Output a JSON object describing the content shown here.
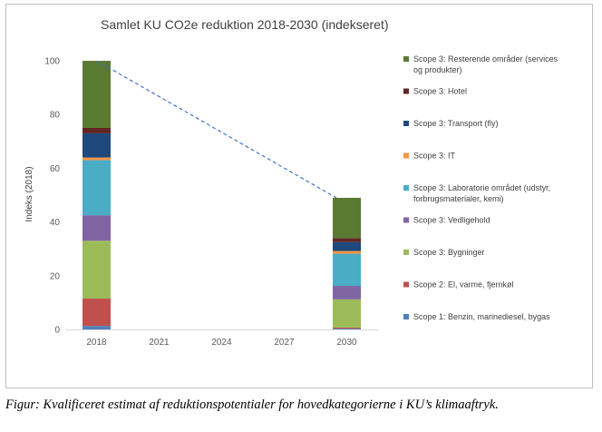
{
  "chart_data": {
    "type": "bar",
    "stacked": true,
    "title": "Samlet KU CO2e reduktion 2018-2030 (indekseret)",
    "ylabel": "Indeks (2018)",
    "xlabel": "",
    "ylim": [
      0,
      100
    ],
    "yticks": [
      "0",
      "20",
      "40",
      "60",
      "80",
      "100"
    ],
    "categories": [
      "2018",
      "2021",
      "2024",
      "2027",
      "2030"
    ],
    "series": [
      {
        "name": "Scope 1: Benzin, marinediesel, bygas",
        "color": "#4f81bd",
        "values": [
          1.3,
          null,
          null,
          null,
          0.3
        ]
      },
      {
        "name": "Scope 2: El, varme, fjernkøl",
        "color": "#c0504d",
        "values": [
          10.2,
          null,
          null,
          null,
          0.4
        ]
      },
      {
        "name": "Scope 3: Bygninger",
        "color": "#9bbb59",
        "values": [
          21.5,
          null,
          null,
          null,
          10.5
        ]
      },
      {
        "name": "Scope 3: Vedligehold",
        "color": "#8064a2",
        "values": [
          9.5,
          null,
          null,
          null,
          5.0
        ]
      },
      {
        "name": "Scope 3: Laboratorie området (udstyr, forbrugsmaterialer, kemi)",
        "color": "#4bacc6",
        "values": [
          20.5,
          null,
          null,
          null,
          12.0
        ]
      },
      {
        "name": "Scope 3: IT",
        "color": "#f79646",
        "values": [
          1.0,
          null,
          null,
          null,
          1.0
        ]
      },
      {
        "name": "Scope 3: Transport (fly)",
        "color": "#1f497d",
        "values": [
          9.0,
          null,
          null,
          null,
          3.3
        ]
      },
      {
        "name": "Scope 3: Hotel",
        "color": "#632523",
        "values": [
          2.0,
          null,
          null,
          null,
          1.5
        ]
      },
      {
        "name": "Scope 3: Resterende områder (services og produkter)",
        "color": "#5a7a32",
        "values": [
          25.0,
          null,
          null,
          null,
          15.0
        ]
      }
    ],
    "trend_line": {
      "from": [
        "2018",
        100
      ],
      "to": [
        "2030",
        49
      ],
      "color": "#4472c4",
      "style": "dashed"
    },
    "legend_position": "right"
  },
  "legend_lines": [
    [
      "Scope 3: Resterende områder (services",
      "og produkter)"
    ],
    [
      "Scope 3: Hotel"
    ],
    [
      "Scope 3: Transport (fly)"
    ],
    [
      "Scope 3: IT"
    ],
    [
      "Scope 3: Laboratorie området (udstyr,",
      "forbrugsmaterialer, kemi)"
    ],
    [
      "Scope 3: Vedligehold"
    ],
    [
      "Scope 3: Bygninger"
    ],
    [
      "Scope 2: El, varme, fjernkøl"
    ],
    [
      "Scope 1: Benzin, marinediesel, bygas"
    ]
  ],
  "caption": "Figur: Kvalificeret estimat af reduktionspotentialer for hovedkategorierne i KU’s klimaaftryk."
}
